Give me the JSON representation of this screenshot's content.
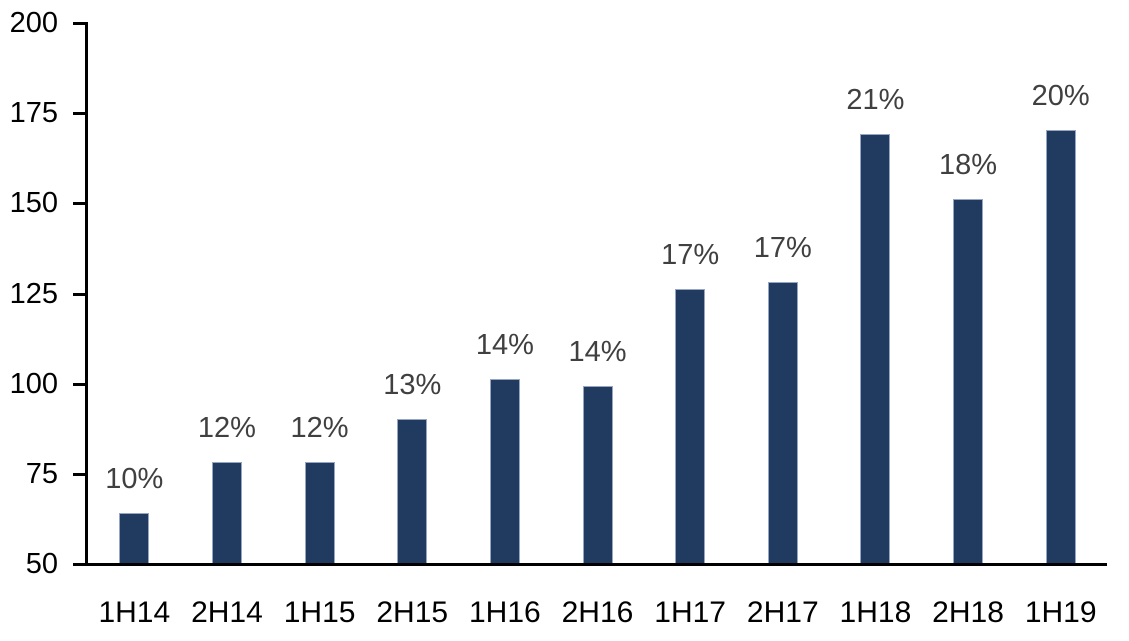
{
  "chart_data": {
    "type": "bar",
    "title": "",
    "xlabel": "",
    "ylabel": "",
    "categories": [
      "1H14",
      "2H14",
      "1H15",
      "2H15",
      "1H16",
      "2H16",
      "1H17",
      "2H17",
      "1H18",
      "2H18",
      "1H19"
    ],
    "values": [
      64,
      78,
      78,
      90,
      101,
      99,
      126,
      128,
      169,
      151,
      170
    ],
    "bar_labels": [
      "10%",
      "12%",
      "12%",
      "13%",
      "14%",
      "14%",
      "17%",
      "17%",
      "21%",
      "18%",
      "20%"
    ],
    "ylim": [
      50,
      200
    ],
    "yticks": [
      50,
      75,
      100,
      125,
      150,
      175,
      200
    ],
    "grid": false,
    "legend": false,
    "colors": {
      "bar_fill": "#213A60",
      "bar_border": "#96A5C1",
      "data_label": "#404040",
      "axis_text": "#000000",
      "axis_line": "#000000",
      "background": "#FFFFFF"
    }
  }
}
